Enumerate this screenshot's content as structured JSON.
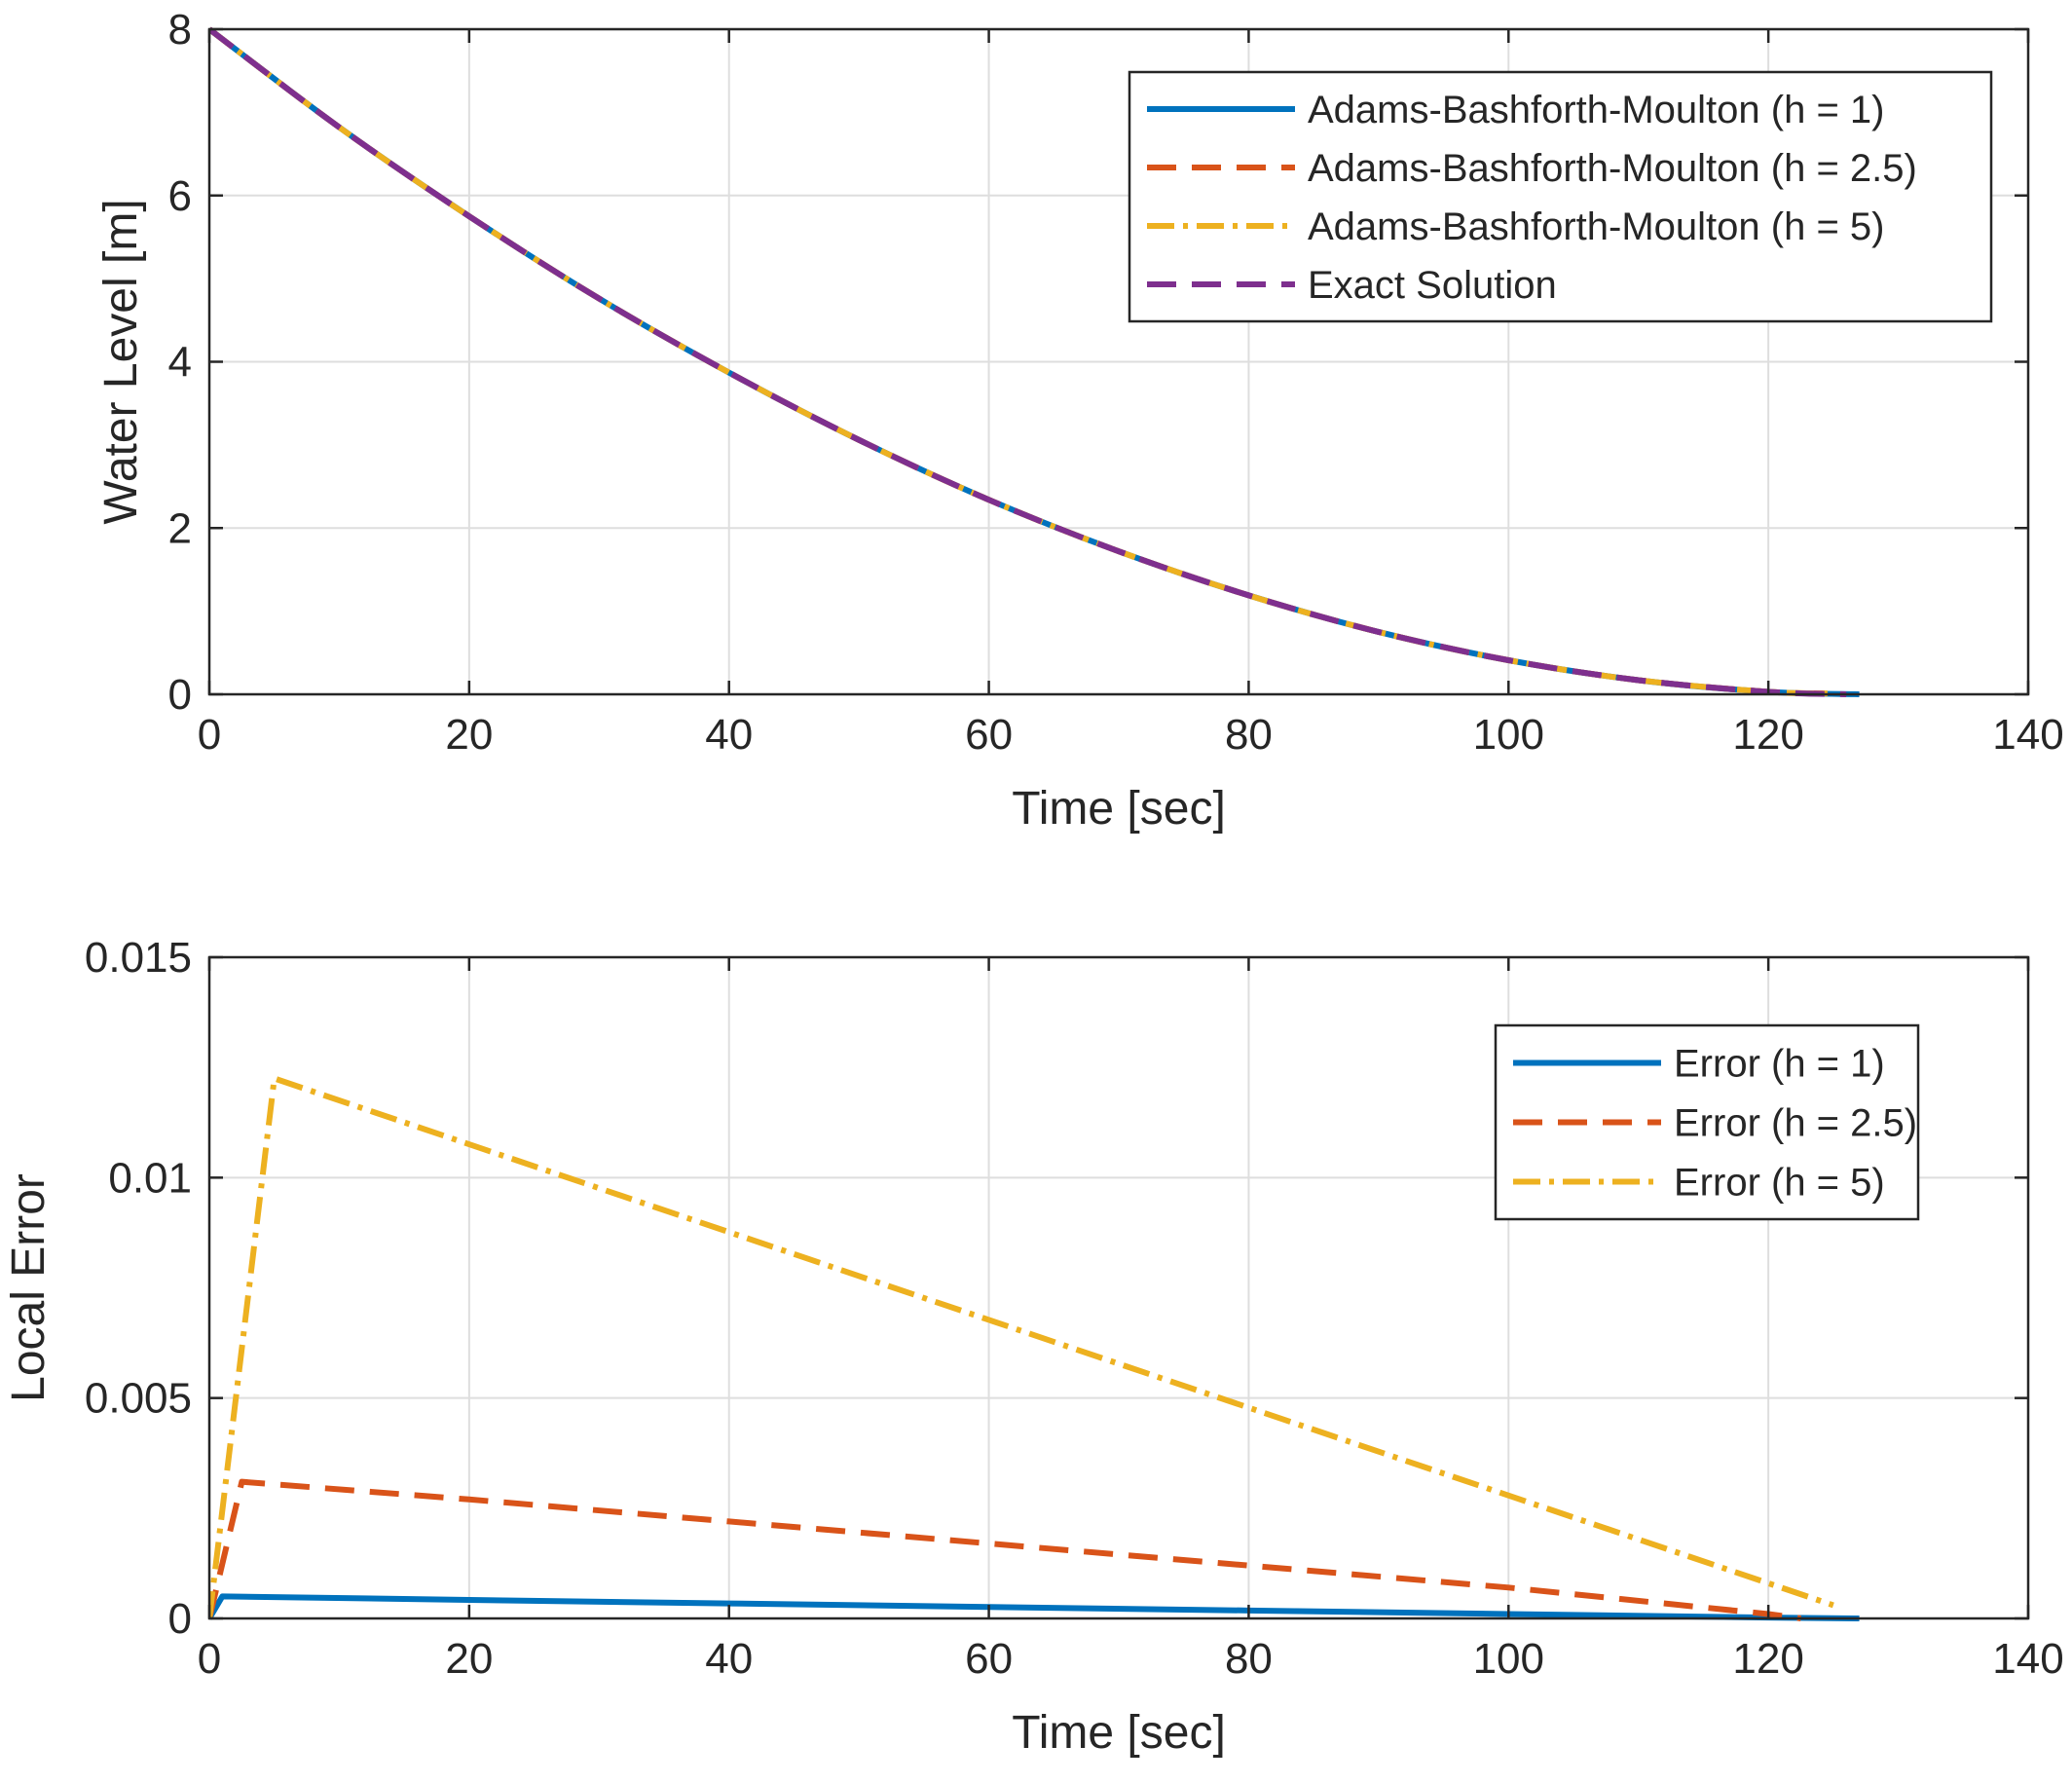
{
  "chart_data": [
    {
      "type": "line",
      "xlabel": "Time [sec]",
      "ylabel": "Water Level [m]",
      "xlim": [
        0,
        140
      ],
      "ylim": [
        0,
        8
      ],
      "xticks": [
        "0",
        "20",
        "40",
        "60",
        "80",
        "100",
        "120",
        "140"
      ],
      "yticks": [
        "0",
        "2",
        "4",
        "6",
        "8"
      ],
      "grid": true,
      "legend_position": "top-right",
      "series": [
        {
          "name": "Adams-Bashforth-Moulton (h = 1)",
          "color": "#0072BD",
          "style": "solid",
          "x": [
            0,
            10,
            20,
            30,
            40,
            50,
            60,
            70,
            80,
            90,
            100,
            110,
            120,
            127
          ],
          "y": [
            8.0,
            6.82,
            5.75,
            4.76,
            3.87,
            3.06,
            2.34,
            1.72,
            1.19,
            0.75,
            0.41,
            0.17,
            0.03,
            0.0
          ]
        },
        {
          "name": "Adams-Bashforth-Moulton (h = 2.5)",
          "color": "#D95319",
          "style": "dashed",
          "x": [
            0,
            10,
            20,
            30,
            40,
            50,
            60,
            70,
            80,
            90,
            100,
            110,
            120,
            125
          ],
          "y": [
            8.0,
            6.82,
            5.75,
            4.76,
            3.87,
            3.06,
            2.34,
            1.72,
            1.19,
            0.75,
            0.41,
            0.17,
            0.03,
            0.01
          ]
        },
        {
          "name": "Adams-Bashforth-Moulton (h = 5)",
          "color": "#EDB120",
          "style": "dashdot",
          "x": [
            0,
            10,
            20,
            30,
            40,
            50,
            60,
            70,
            80,
            90,
            100,
            110,
            120,
            125
          ],
          "y": [
            8.0,
            6.82,
            5.75,
            4.76,
            3.87,
            3.06,
            2.34,
            1.72,
            1.19,
            0.75,
            0.41,
            0.17,
            0.03,
            0.01
          ]
        },
        {
          "name": "Exact Solution",
          "color": "#7E2F8E",
          "style": "dashed",
          "x": [
            0,
            10,
            20,
            30,
            40,
            50,
            60,
            70,
            80,
            90,
            100,
            110,
            120,
            126
          ],
          "y": [
            8.0,
            6.82,
            5.75,
            4.76,
            3.87,
            3.06,
            2.34,
            1.72,
            1.19,
            0.75,
            0.41,
            0.17,
            0.03,
            0.0
          ]
        }
      ]
    },
    {
      "type": "line",
      "xlabel": "Time [sec]",
      "ylabel": "Local Error",
      "xlim": [
        0,
        140
      ],
      "ylim": [
        0,
        0.015
      ],
      "xticks": [
        "0",
        "20",
        "40",
        "60",
        "80",
        "100",
        "120",
        "140"
      ],
      "yticks": [
        "0",
        "0.005",
        "0.01",
        "0.015"
      ],
      "grid": true,
      "legend_position": "top-right",
      "series": [
        {
          "name": "Error (h = 1)",
          "color": "#0072BD",
          "style": "solid",
          "x": [
            0,
            1,
            20,
            40,
            60,
            80,
            100,
            120,
            127
          ],
          "y": [
            0,
            0.0005,
            0.00042,
            0.00034,
            0.00026,
            0.00018,
            0.0001,
            2e-05,
            0
          ]
        },
        {
          "name": "Error (h = 2.5)",
          "color": "#D95319",
          "style": "dashed",
          "x": [
            0,
            2.5,
            20,
            40,
            60,
            80,
            100,
            120,
            122.5
          ],
          "y": [
            0,
            0.0031,
            0.0027,
            0.0022,
            0.0017,
            0.0012,
            0.0007,
            0.0001,
            0
          ]
        },
        {
          "name": "Error (h = 5)",
          "color": "#EDB120",
          "style": "dashdot",
          "x": [
            0,
            5,
            125
          ],
          "y": [
            0,
            0.01225,
            0.0003
          ]
        }
      ]
    }
  ]
}
